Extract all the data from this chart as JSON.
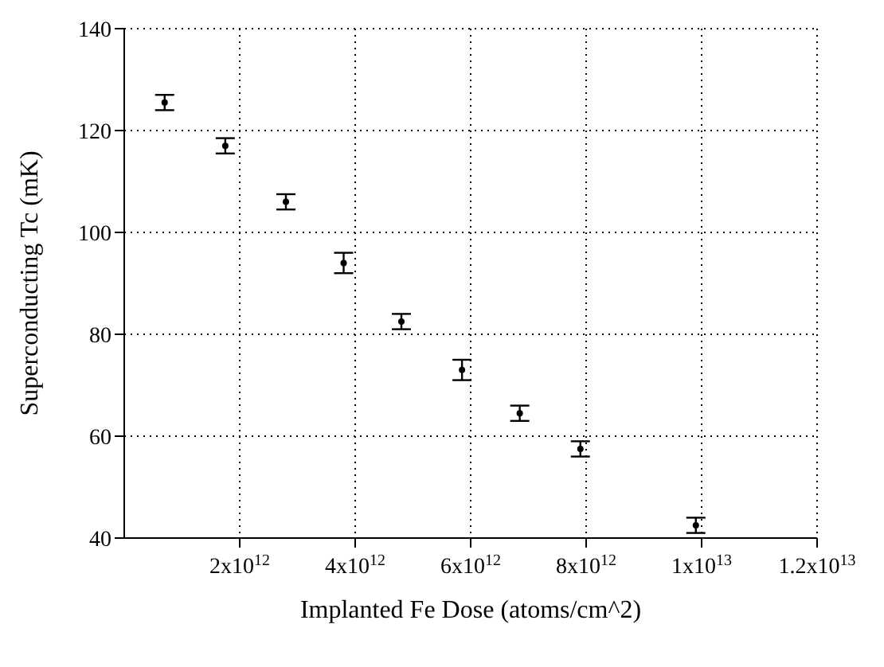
{
  "chart_data": {
    "type": "scatter",
    "xlabel": "Implanted Fe Dose (atoms/cm^2)",
    "ylabel": "Superconducting Tc (mK)",
    "x": [
      700000000000.0,
      1750000000000.0,
      2800000000000.0,
      3800000000000.0,
      4800000000000.0,
      5850000000000.0,
      6850000000000.0,
      7900000000000.0,
      9900000000000.0
    ],
    "series": [
      {
        "color": "#000000",
        "values": [
          125.5,
          117,
          106,
          94,
          82.5,
          73,
          64.5,
          57.5,
          42.5
        ],
        "errors": [
          1.5,
          1.5,
          1.5,
          2,
          1.5,
          2,
          1.5,
          1.5,
          1.5
        ]
      }
    ],
    "xlim": [
      0,
      12000000000000.0
    ],
    "xticks": [
      {
        "value": 2000000000000.0,
        "label": "2x10$^{12}$"
      },
      {
        "value": 4000000000000.0,
        "label": "4x10$^{12}$"
      },
      {
        "value": 6000000000000.0,
        "label": "6x10$^{12}$"
      },
      {
        "value": 8000000000000.0,
        "label": "8x10$^{12}$"
      },
      {
        "value": 10000000000000.0,
        "label": "1x10$^{13}$"
      },
      {
        "value": 12000000000000.0,
        "label": "1.2x10$^{13}$"
      }
    ],
    "ylim": [
      40,
      140
    ],
    "yticks": [
      40,
      60,
      80,
      100,
      120,
      140
    ],
    "grid": true,
    "marker": "circle"
  }
}
